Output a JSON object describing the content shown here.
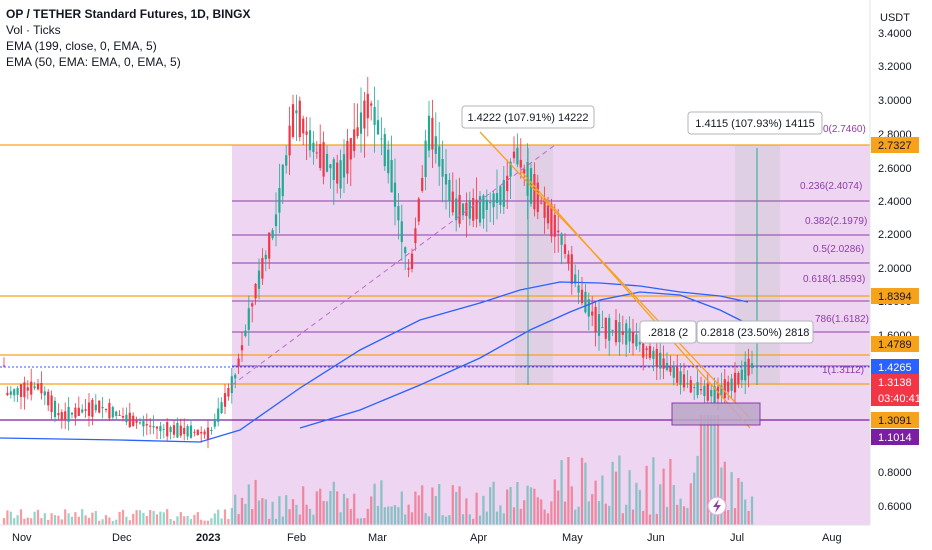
{
  "legend": {
    "title": "OP / TETHER Standard Futures, 1D, BINGX",
    "vol": "Vol · Ticks",
    "ema1": "EMA (199, close, 0, EMA, 5)",
    "ema2": "EMA (50, EMA: EMA, 0, EMA, 5)"
  },
  "axis": {
    "currency": "USDT",
    "y_ticks": [
      "3.4000",
      "3.2000",
      "3.0000",
      "2.8000",
      "2.6000",
      "2.4000",
      "2.2000",
      "2.0000",
      "1.8000",
      "1.6000",
      "0.8000",
      "0.6000"
    ],
    "x_ticks": [
      "Nov",
      "Dec",
      "2023",
      "Feb",
      "Mar",
      "Apr",
      "May",
      "Jun",
      "Jul",
      "Aug"
    ]
  },
  "price_tags": [
    {
      "text": "2.7327",
      "bg": "#f7a21b",
      "fg": "#131722"
    },
    {
      "text": "1.8394",
      "bg": "#f7a21b",
      "fg": "#131722"
    },
    {
      "text": "1.4789",
      "bg": "#f7a21b",
      "fg": "#131722"
    },
    {
      "text": "1.4265",
      "bg": "#2962ff",
      "fg": "#ffffff"
    },
    {
      "text": "1.3138",
      "bg": "#f23645",
      "fg": "#ffffff"
    },
    {
      "text": "03:40:41",
      "bg": "#f23645",
      "fg": "#ffffff"
    },
    {
      "text": "1.3091",
      "bg": "#f7a21b",
      "fg": "#131722"
    },
    {
      "text": "1.1014",
      "bg": "#7b1fa2",
      "fg": "#ffffff"
    }
  ],
  "fib_labels": [
    "0(2.7460)",
    "0.236(2.4074)",
    "0.382(2.1979)",
    "0.5(2.0286)",
    "0.618(1.8593)",
    "786(1.6182)",
    "1(1.3112)"
  ],
  "measure_boxes": [
    "1.4222 (107.91%) 14222",
    "1.4115 (107.93%) 14115",
    "0.2818 (23.50%) 2818",
    ".2818 (2"
  ],
  "colors": {
    "fib_fill": "#e8c7ee",
    "orange": "#f7a21b",
    "purple": "#8e3ea8",
    "ema_blue": "#2962ff",
    "up": "#22ab94",
    "down": "#f23645"
  },
  "chart_data": {
    "type": "candlestick",
    "x_range": [
      "Nov",
      "Aug"
    ],
    "y_range": [
      0.6,
      3.4
    ],
    "price_series_approx": [
      {
        "x": "Nov",
        "y": 1.25
      },
      {
        "x": "Dec",
        "y": 1.1
      },
      {
        "x": "2023",
        "y": 1.02
      },
      {
        "x": "Feb",
        "y": 2.9
      },
      {
        "x": "Mar",
        "y": 2.6
      },
      {
        "x": "Apr",
        "y": 2.5
      },
      {
        "x": "Apr-end",
        "y": 2.7
      },
      {
        "x": "May",
        "y": 1.75
      },
      {
        "x": "Jun",
        "y": 1.35
      },
      {
        "x": "Jul",
        "y": 1.31
      }
    ]
  }
}
